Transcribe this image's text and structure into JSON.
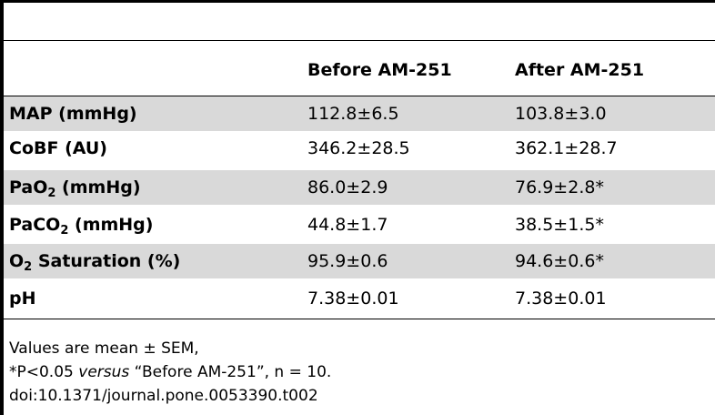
{
  "table": {
    "columns": [
      "",
      "Before AM-251",
      "After AM-251"
    ],
    "rows": [
      {
        "label_main": "MAP (mmHg)",
        "label_sub": "",
        "label_rest": "",
        "before": "112.8±6.5",
        "after": "103.8±3.0"
      },
      {
        "label_main": "CoBF (AU)",
        "label_sub": "",
        "label_rest": "",
        "before": "346.2±28.5",
        "after": "362.1±28.7"
      },
      {
        "label_main": "PaO",
        "label_sub": "2",
        "label_rest": " (mmHg)",
        "before": "86.0±2.9",
        "after": "76.9±2.8*"
      },
      {
        "label_main": "PaCO",
        "label_sub": "2",
        "label_rest": " (mmHg)",
        "before": "44.8±1.7",
        "after": "38.5±1.5*"
      },
      {
        "label_main": "O",
        "label_sub": "2",
        "label_rest": " Saturation (%)",
        "before": "95.9±0.6",
        "after": "94.6±0.6*"
      },
      {
        "label_main": "pH",
        "label_sub": "",
        "label_rest": "",
        "before": "7.38±0.01",
        "after": "7.38±0.01"
      }
    ]
  },
  "footnotes": {
    "line1": "Values are mean ± SEM,",
    "line2_pre": "*P<0.05 ",
    "line2_italic": "versus",
    "line2_post": " “Before AM-251”, n = 10.",
    "line3": "doi:10.1371/journal.pone.0053390.t002"
  }
}
